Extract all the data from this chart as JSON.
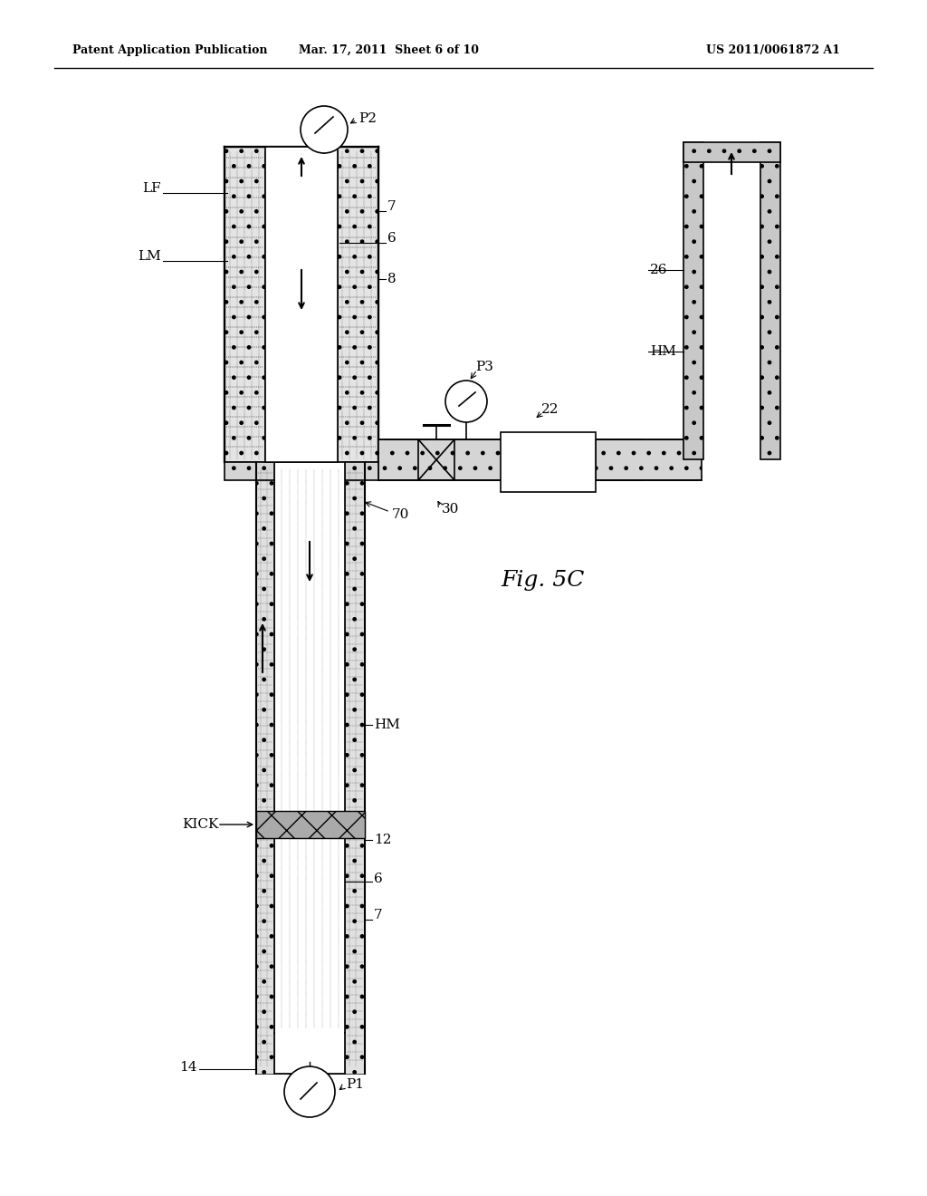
{
  "title_left": "Patent Application Publication",
  "title_mid": "Mar. 17, 2011  Sheet 6 of 10",
  "title_right": "US 2011/0061872 A1",
  "fig_label": "Fig. 5C",
  "bg_color": "#ffffff",
  "line_color": "#000000",
  "labels": {
    "LF": "LF",
    "LM": "LM",
    "HM_right": "HM",
    "HM_lower": "HM",
    "KICK": "KICK",
    "P1": "P1",
    "P2": "P2",
    "P3": "P3",
    "n6": "6",
    "n7": "7",
    "n8": "8",
    "n12": "12",
    "n14": "14",
    "n22": "22",
    "n26": "26",
    "n30": "30",
    "n70": "70"
  }
}
